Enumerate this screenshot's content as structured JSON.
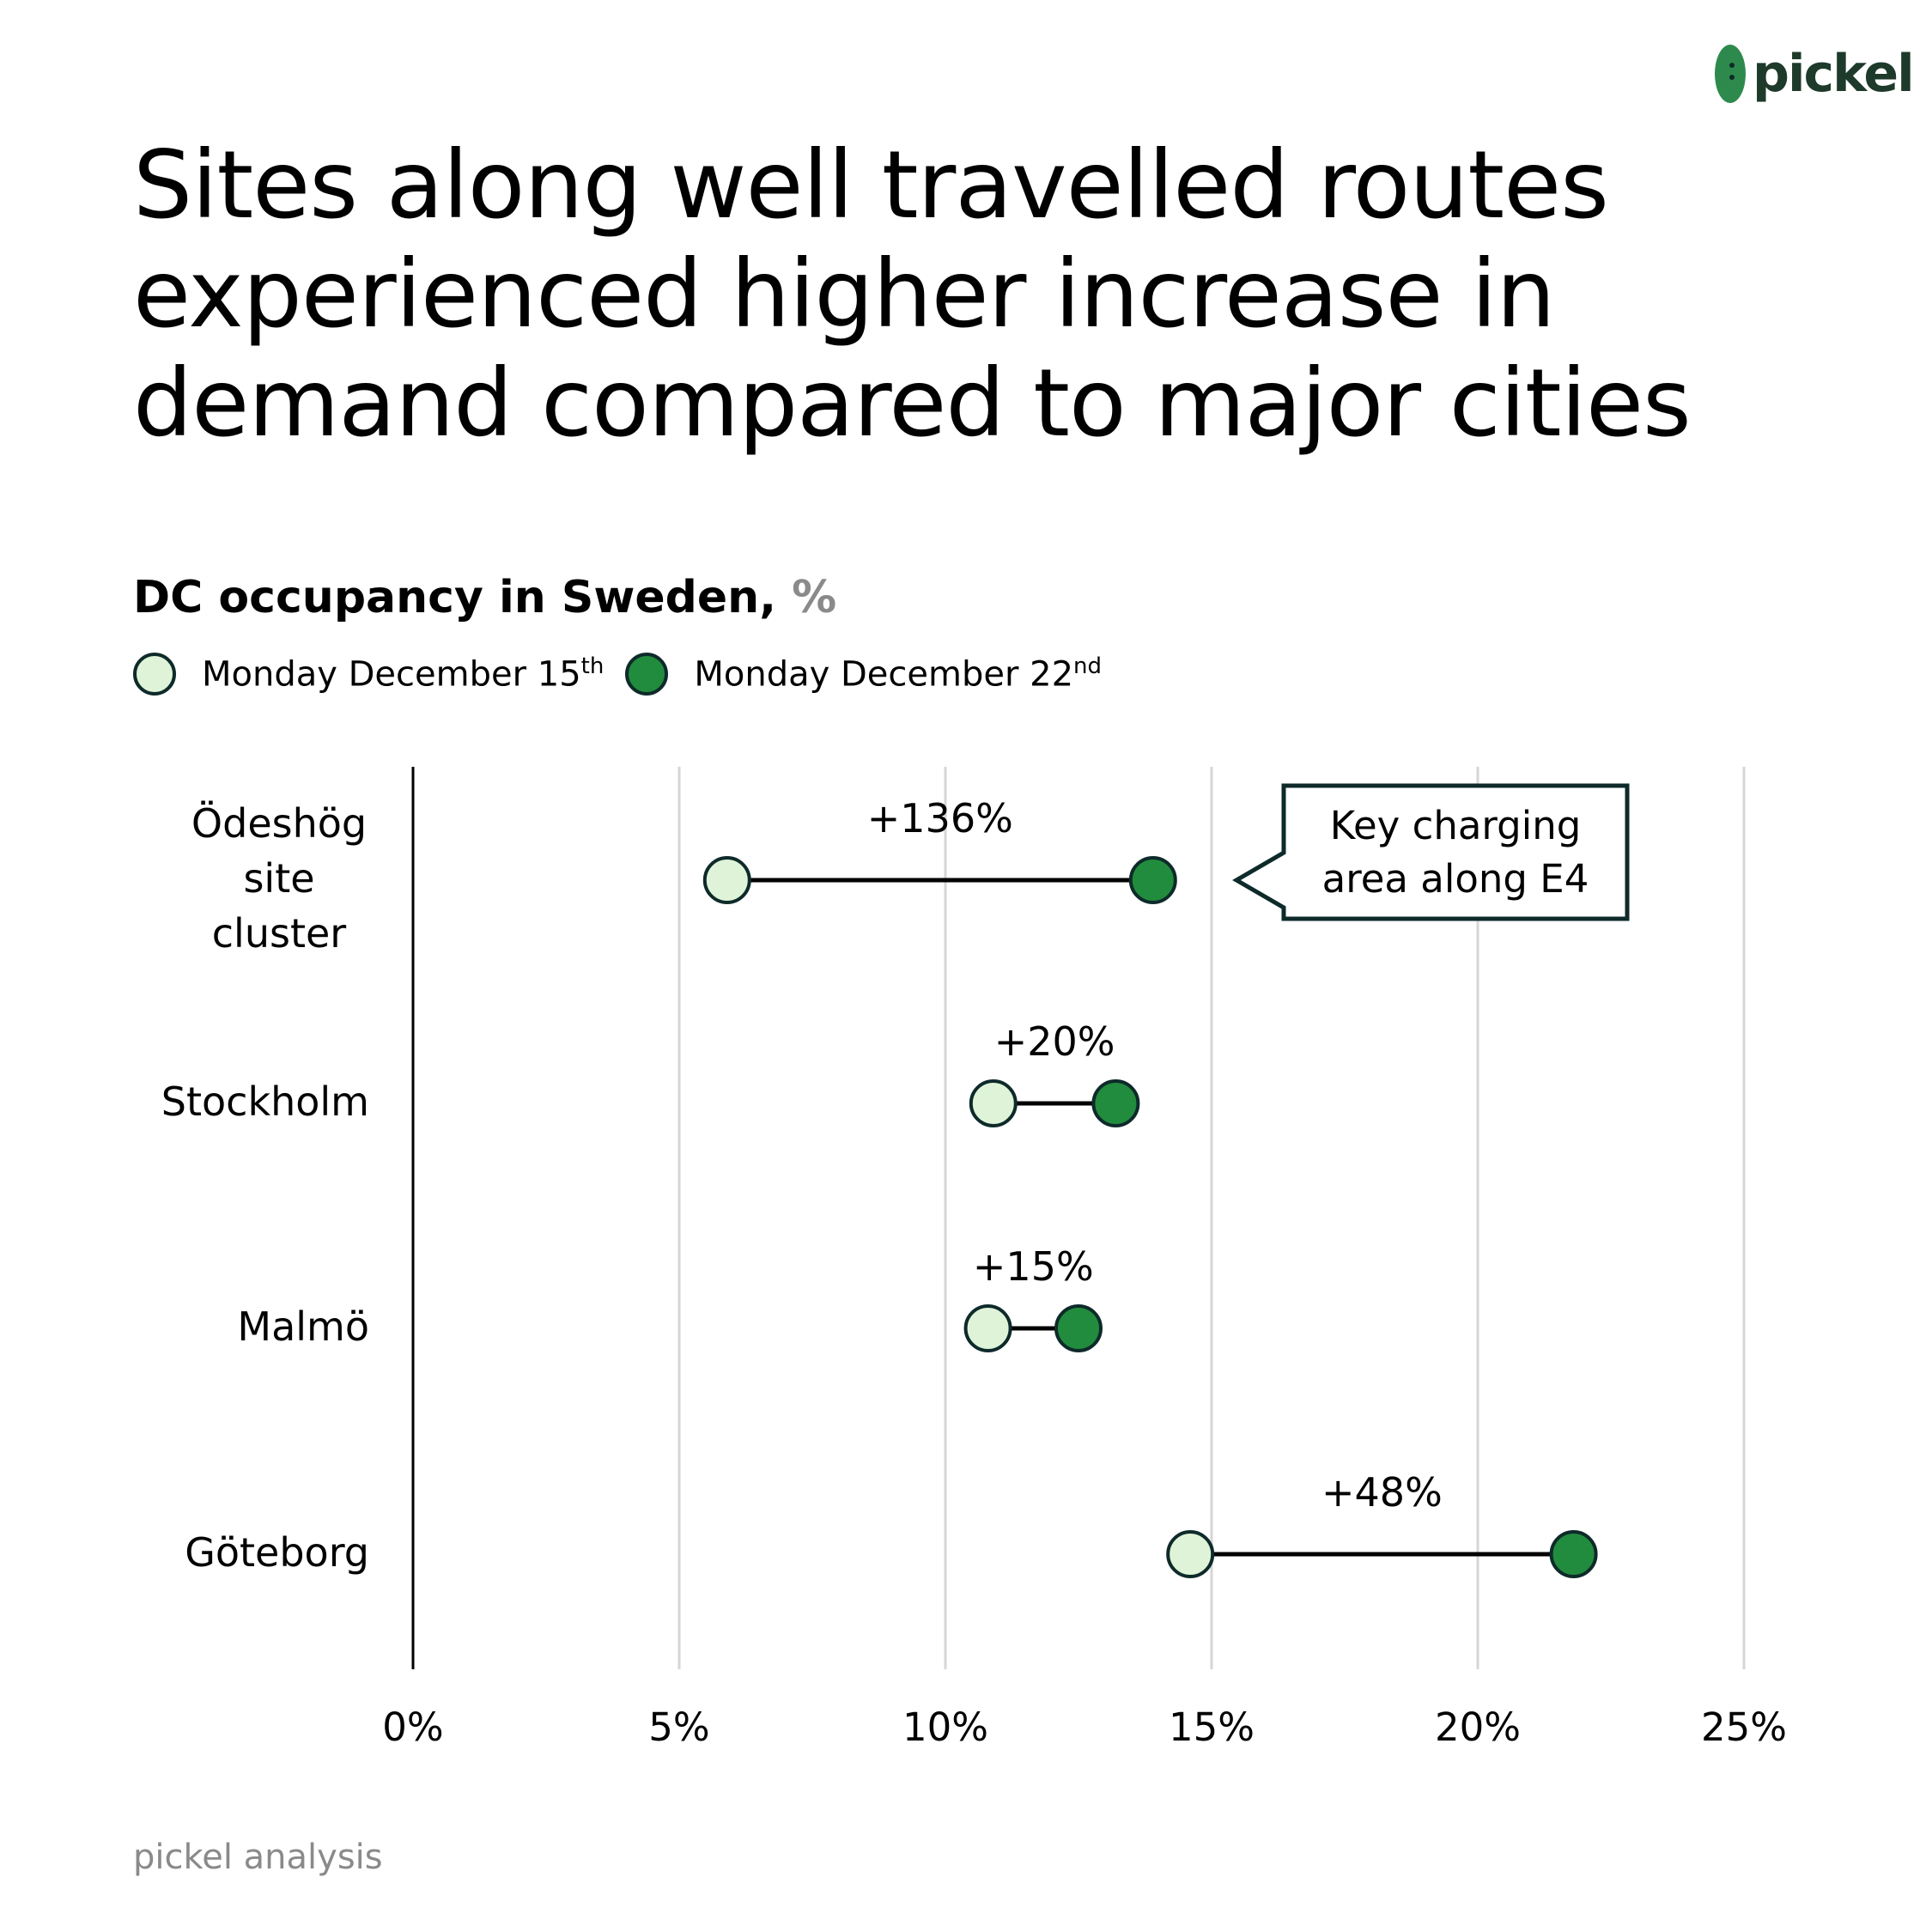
{
  "brand": {
    "name": "pickel",
    "colors": {
      "light": "#dff3d8",
      "dark": "#218c3d",
      "outline": "#0e2a2a",
      "grid": "#d6d6d6",
      "logo": "#2e8a4c"
    }
  },
  "title": "Sites along well travelled routes experienced higher increase in demand compared to major cities",
  "subtitle": {
    "text": "DC occupancy in Sweden,",
    "unit": "%"
  },
  "legend": [
    {
      "label": "Monday December 15",
      "suffix": "th",
      "color": "#dff3d8"
    },
    {
      "label": "Monday December 22",
      "suffix": "nd",
      "color": "#218c3d"
    }
  ],
  "source": "pickel analysis",
  "chart_data": {
    "type": "dumbbell",
    "title": "DC occupancy in Sweden, %",
    "xlim": [
      0,
      25
    ],
    "xticks": [
      0,
      5,
      10,
      15,
      20,
      25
    ],
    "xtick_labels": [
      "0%",
      "5%",
      "10%",
      "15%",
      "20%",
      "25%"
    ],
    "grid": true,
    "series": [
      {
        "name": "Monday December 15th",
        "values": [
          5.9,
          10.9,
          10.8,
          14.6
        ]
      },
      {
        "name": "Monday December 22nd",
        "values": [
          13.9,
          13.2,
          12.5,
          21.8
        ]
      }
    ],
    "categories": [
      {
        "label": [
          "Ödeshög",
          "site",
          "cluster"
        ],
        "start": 5.9,
        "end": 13.9,
        "change": "+136%"
      },
      {
        "label": [
          "Stockholm"
        ],
        "start": 10.9,
        "end": 13.2,
        "change": "+20%"
      },
      {
        "label": [
          "Malmö"
        ],
        "start": 10.8,
        "end": 12.5,
        "change": "+15%"
      },
      {
        "label": [
          "Göteborg"
        ],
        "start": 14.6,
        "end": 21.8,
        "change": "+48%"
      }
    ],
    "annotation": {
      "category": 0,
      "text": [
        "Key charging",
        "area along E4"
      ]
    }
  }
}
